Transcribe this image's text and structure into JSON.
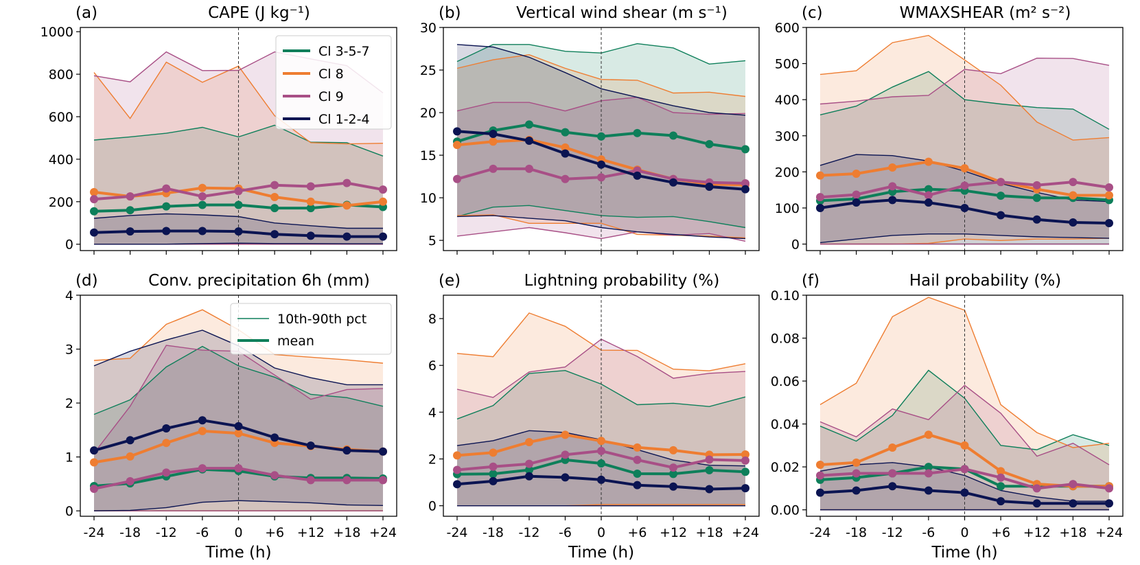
{
  "x_ticks": [
    "-24",
    "-18",
    "-12",
    "-6",
    "0",
    "+6",
    "+12",
    "+18",
    "+24"
  ],
  "x_values": [
    -24,
    -18,
    -12,
    -6,
    0,
    6,
    12,
    18,
    24
  ],
  "xlabel": "Time (h)",
  "legend_classes": [
    {
      "name": "Cl 3-5-7",
      "color": "#0e7f5a"
    },
    {
      "name": "Cl 8",
      "color": "#ee7d31"
    },
    {
      "name": "Cl 9",
      "color": "#a84f86"
    },
    {
      "name": "Cl 1-2-4",
      "color": "#0b1452"
    }
  ],
  "legend_styles": [
    {
      "name": "10th-90th pct",
      "style": "thin",
      "color": "#0e7f5a"
    },
    {
      "name": "mean",
      "style": "thick",
      "color": "#0e7f5a"
    }
  ],
  "chart_data": [
    {
      "type": "line",
      "id": "a",
      "label": "(a)",
      "title": "CAPE (J kg⁻¹)",
      "xlabel": "",
      "ylim": [
        -30,
        1020
      ],
      "yticks": [
        0,
        200,
        400,
        600,
        800,
        1000
      ],
      "ytick_labels": [
        "0",
        "200",
        "400",
        "600",
        "800",
        "1000"
      ],
      "legend": "classes",
      "series": [
        {
          "name": "Cl 3-5-7",
          "mean": [
            155,
            160,
            178,
            185,
            185,
            170,
            170,
            185,
            175
          ],
          "p10": [
            0,
            0,
            0,
            0,
            0,
            0,
            0,
            0,
            0
          ],
          "p90": [
            490,
            505,
            522,
            550,
            505,
            560,
            480,
            478,
            415
          ]
        },
        {
          "name": "Cl 8",
          "mean": [
            245,
            225,
            240,
            265,
            262,
            222,
            200,
            182,
            200
          ],
          "p10": [
            0,
            0,
            0,
            0,
            0,
            0,
            0,
            0,
            0
          ],
          "p90": [
            808,
            592,
            857,
            762,
            838,
            605,
            478,
            472,
            475
          ]
        },
        {
          "name": "Cl 9",
          "mean": [
            212,
            225,
            262,
            225,
            250,
            278,
            272,
            288,
            257
          ],
          "p10": [
            0,
            0,
            0,
            0,
            0,
            0,
            0,
            0,
            0
          ],
          "p90": [
            793,
            764,
            905,
            817,
            818,
            905,
            872,
            840,
            712
          ]
        },
        {
          "name": "Cl 1-2-4",
          "mean": [
            55,
            60,
            62,
            62,
            60,
            47,
            40,
            36,
            36
          ],
          "p10": [
            0,
            0,
            0,
            3,
            5,
            3,
            3,
            2,
            2
          ],
          "p90": [
            122,
            135,
            143,
            138,
            130,
            100,
            87,
            75,
            75
          ]
        }
      ]
    },
    {
      "type": "line",
      "id": "b",
      "label": "(b)",
      "title": "Vertical wind shear (m s⁻¹)",
      "xlabel": "",
      "ylim": [
        3.8,
        30
      ],
      "yticks": [
        5,
        10,
        15,
        20,
        25,
        30
      ],
      "ytick_labels": [
        "5",
        "10",
        "15",
        "20",
        "25",
        "30"
      ],
      "legend": "",
      "series": [
        {
          "name": "Cl 3-5-7",
          "mean": [
            16.6,
            17.9,
            18.6,
            17.7,
            17.2,
            17.6,
            17.3,
            16.3,
            15.7
          ],
          "p10": [
            7.8,
            8.9,
            9.1,
            8.5,
            7.9,
            7.7,
            7.8,
            7.2,
            6.5
          ],
          "p90": [
            26.0,
            28.0,
            28.0,
            27.2,
            27.0,
            28.1,
            27.6,
            25.7,
            26.1
          ]
        },
        {
          "name": "Cl 8",
          "mean": [
            16.2,
            16.6,
            16.8,
            15.9,
            14.5,
            13.3,
            12.2,
            11.6,
            11.5
          ],
          "p10": [
            7.9,
            8.0,
            7.0,
            7.0,
            7.0,
            5.7,
            5.6,
            5.5,
            5.3
          ],
          "p90": [
            25.2,
            26.2,
            26.8,
            25.2,
            23.9,
            23.8,
            22.3,
            22.4,
            21.9
          ]
        },
        {
          "name": "Cl 9",
          "mean": [
            12.2,
            13.4,
            13.4,
            12.2,
            12.4,
            13.2,
            12.2,
            11.8,
            11.7
          ],
          "p10": [
            5.5,
            6.0,
            6.5,
            5.9,
            5.2,
            6.0,
            5.6,
            5.8,
            4.9
          ],
          "p90": [
            20.2,
            21.2,
            21.2,
            20.2,
            21.4,
            21.8,
            20.0,
            19.8,
            19.9
          ]
        },
        {
          "name": "Cl 1-2-4",
          "mean": [
            17.8,
            17.5,
            16.7,
            15.2,
            13.9,
            12.6,
            11.8,
            11.3,
            11.0
          ],
          "p10": [
            7.8,
            7.9,
            7.6,
            7.3,
            6.5,
            6.0,
            5.7,
            5.4,
            5.2
          ],
          "p90": [
            28.0,
            27.7,
            26.5,
            24.7,
            22.8,
            21.8,
            20.8,
            20.0,
            19.7
          ]
        }
      ]
    },
    {
      "type": "line",
      "id": "c",
      "label": "(c)",
      "title": "WMAXSHEAR (m² s⁻²)",
      "xlabel": "",
      "ylim": [
        -18,
        600
      ],
      "yticks": [
        0,
        100,
        200,
        300,
        400,
        500,
        600
      ],
      "ytick_labels": [
        "0",
        "100",
        "200",
        "300",
        "400",
        "500",
        "600"
      ],
      "legend": "",
      "series": [
        {
          "name": "Cl 3-5-7",
          "mean": [
            120,
            125,
            145,
            152,
            148,
            134,
            128,
            128,
            122
          ],
          "p10": [
            0,
            0,
            0,
            0,
            0,
            0,
            0,
            0,
            0
          ],
          "p90": [
            358,
            382,
            435,
            478,
            400,
            388,
            378,
            374,
            318
          ]
        },
        {
          "name": "Cl 8",
          "mean": [
            190,
            195,
            212,
            228,
            210,
            172,
            152,
            135,
            135
          ],
          "p10": [
            0,
            0,
            0,
            2,
            14,
            10,
            14,
            14,
            16
          ],
          "p90": [
            470,
            480,
            558,
            578,
            510,
            440,
            338,
            288,
            295
          ]
        },
        {
          "name": "Cl 9",
          "mean": [
            130,
            137,
            160,
            135,
            162,
            172,
            163,
            172,
            157
          ],
          "p10": [
            0,
            0,
            0,
            0,
            0,
            0,
            0,
            0,
            0
          ],
          "p90": [
            388,
            396,
            408,
            412,
            484,
            472,
            515,
            514,
            495
          ]
        },
        {
          "name": "Cl 1-2-4",
          "mean": [
            100,
            115,
            122,
            115,
            100,
            80,
            68,
            60,
            58
          ],
          "p10": [
            4,
            14,
            24,
            28,
            28,
            24,
            20,
            18,
            16
          ],
          "p90": [
            218,
            248,
            245,
            230,
            202,
            168,
            143,
            122,
            118
          ]
        }
      ]
    },
    {
      "type": "line",
      "id": "d",
      "label": "(d)",
      "title": "Conv. precipitation 6h (mm)",
      "xlabel": "Time (h)",
      "ylim": [
        -0.1,
        4
      ],
      "yticks": [
        0,
        1,
        2,
        3,
        4
      ],
      "ytick_labels": [
        "0",
        "1",
        "2",
        "3",
        "4"
      ],
      "legend": "styles",
      "series": [
        {
          "name": "Cl 3-5-7",
          "mean": [
            0.46,
            0.51,
            0.64,
            0.77,
            0.74,
            0.64,
            0.61,
            0.61,
            0.6
          ],
          "p10": [
            0,
            0,
            0,
            0,
            0,
            0,
            0,
            0,
            0
          ],
          "p90": [
            1.79,
            2.06,
            2.67,
            3.05,
            2.69,
            2.48,
            2.16,
            2.1,
            1.94
          ]
        },
        {
          "name": "Cl 8",
          "mean": [
            0.9,
            1.01,
            1.26,
            1.48,
            1.44,
            1.26,
            1.2,
            1.14,
            1.1
          ],
          "p10": [
            0,
            0,
            0,
            0,
            0,
            0,
            0,
            0,
            0
          ],
          "p90": [
            2.79,
            2.83,
            3.46,
            3.73,
            3.36,
            2.9,
            2.85,
            2.8,
            2.74
          ]
        },
        {
          "name": "Cl 9",
          "mean": [
            0.41,
            0.55,
            0.71,
            0.79,
            0.79,
            0.66,
            0.57,
            0.57,
            0.57
          ],
          "p10": [
            0,
            0,
            0,
            0,
            0,
            0,
            0,
            0,
            0
          ],
          "p90": [
            1.07,
            1.94,
            3.07,
            2.98,
            2.96,
            2.52,
            2.07,
            2.25,
            2.27
          ]
        },
        {
          "name": "Cl 1-2-4",
          "mean": [
            1.12,
            1.31,
            1.53,
            1.68,
            1.57,
            1.36,
            1.21,
            1.12,
            1.1
          ],
          "p10": [
            0,
            0.01,
            0.06,
            0.16,
            0.19,
            0.17,
            0.15,
            0.11,
            0.1
          ],
          "p90": [
            2.69,
            2.96,
            3.17,
            3.35,
            3.06,
            2.65,
            2.47,
            2.34,
            2.34
          ]
        }
      ]
    },
    {
      "type": "line",
      "id": "e",
      "label": "(e)",
      "title": "Lightning probability (%)",
      "xlabel": "Time (h)",
      "ylim": [
        -0.45,
        9
      ],
      "yticks": [
        0,
        2,
        4,
        6,
        8
      ],
      "ytick_labels": [
        "0",
        "2",
        "4",
        "6",
        "8"
      ],
      "legend": "",
      "series": [
        {
          "name": "Cl 3-5-7",
          "mean": [
            1.35,
            1.36,
            1.53,
            1.96,
            1.81,
            1.37,
            1.36,
            1.52,
            1.45
          ],
          "p10": [
            0,
            0,
            0,
            0,
            0,
            0,
            0,
            0,
            0
          ],
          "p90": [
            3.71,
            4.28,
            5.65,
            5.78,
            5.2,
            4.32,
            4.38,
            4.24,
            4.65
          ]
        },
        {
          "name": "Cl 8",
          "mean": [
            2.15,
            2.27,
            2.72,
            3.03,
            2.77,
            2.49,
            2.37,
            2.18,
            2.19
          ],
          "p10": [
            0,
            0,
            0,
            0,
            0.05,
            0.05,
            0.05,
            0.05,
            0.05
          ],
          "p90": [
            6.51,
            6.37,
            8.24,
            7.67,
            6.65,
            6.64,
            5.84,
            5.77,
            6.07
          ]
        },
        {
          "name": "Cl 9",
          "mean": [
            1.53,
            1.67,
            1.79,
            2.18,
            2.34,
            1.96,
            1.63,
            1.97,
            1.93
          ],
          "p10": [
            0,
            0,
            0,
            0,
            0,
            0,
            0,
            0,
            0
          ],
          "p90": [
            4.98,
            4.63,
            5.72,
            5.93,
            7.12,
            6.38,
            5.45,
            5.66,
            5.74
          ]
        },
        {
          "name": "Cl 1-2-4",
          "mean": [
            0.92,
            1.05,
            1.26,
            1.21,
            1.11,
            0.88,
            0.82,
            0.71,
            0.75
          ],
          "p10": [
            0,
            0,
            0,
            0,
            0,
            0,
            0,
            0,
            0
          ],
          "p90": [
            2.57,
            2.78,
            3.21,
            3.13,
            2.82,
            2.4,
            1.95,
            1.73,
            1.7
          ]
        }
      ]
    },
    {
      "type": "line",
      "id": "f",
      "label": "(f)",
      "title": "Hail probability (%)",
      "xlabel": "Time (h)",
      "ylim": [
        -0.003,
        0.1
      ],
      "yticks": [
        0,
        0.02,
        0.04,
        0.06,
        0.08,
        0.1
      ],
      "ytick_labels": [
        "0.00",
        "0.02",
        "0.04",
        "0.06",
        "0.08",
        "0.10"
      ],
      "legend": "",
      "series": [
        {
          "name": "Cl 3-5-7",
          "mean": [
            0.014,
            0.015,
            0.017,
            0.02,
            0.019,
            0.011,
            0.011,
            0.011,
            0.011
          ],
          "p10": [
            0,
            0,
            0,
            0,
            0,
            0,
            0,
            0,
            0
          ],
          "p90": [
            0.039,
            0.032,
            0.044,
            0.065,
            0.052,
            0.03,
            0.028,
            0.035,
            0.03
          ]
        },
        {
          "name": "Cl 8",
          "mean": [
            0.021,
            0.022,
            0.029,
            0.035,
            0.03,
            0.018,
            0.012,
            0.011,
            0.011
          ],
          "p10": [
            0,
            0,
            0,
            0,
            0,
            0,
            0,
            0,
            0
          ],
          "p90": [
            0.049,
            0.059,
            0.09,
            0.099,
            0.093,
            0.049,
            0.036,
            0.029,
            0.031
          ]
        },
        {
          "name": "Cl 9",
          "mean": [
            0.016,
            0.017,
            0.017,
            0.017,
            0.019,
            0.015,
            0.01,
            0.012,
            0.01
          ],
          "p10": [
            0,
            0,
            0,
            0,
            0,
            0,
            0,
            0,
            0
          ],
          "p90": [
            0.041,
            0.034,
            0.047,
            0.042,
            0.058,
            0.045,
            0.025,
            0.031,
            0.021
          ]
        },
        {
          "name": "Cl 1-2-4",
          "mean": [
            0.008,
            0.009,
            0.011,
            0.009,
            0.008,
            0.004,
            0.003,
            0.003,
            0.003
          ],
          "p10": [
            0,
            0,
            0,
            0,
            0,
            0,
            0,
            0,
            0
          ],
          "p90": [
            0.018,
            0.021,
            0.022,
            0.02,
            0.016,
            0.009,
            0.006,
            0.004,
            0.004
          ]
        }
      ]
    }
  ]
}
